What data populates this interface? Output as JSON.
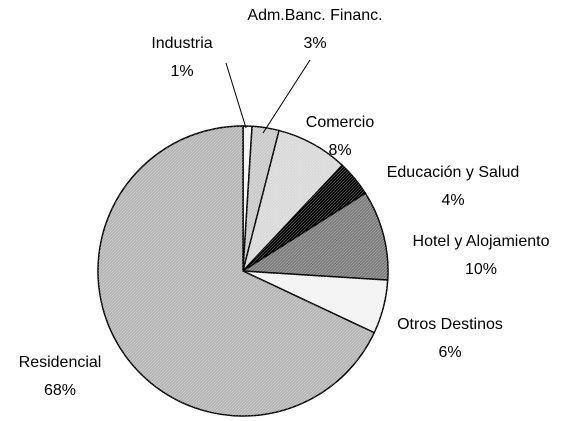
{
  "chart_data": {
    "type": "pie",
    "categories": [
      "Industria",
      "Adm.Banc. Financ.",
      "Comercio",
      "Educación y Salud",
      "Hotel y Alojamiento",
      "Otros Destinos",
      "Residencial"
    ],
    "values": [
      1,
      3,
      8,
      4,
      10,
      6,
      68
    ],
    "value_labels": [
      "1%",
      "3%",
      "8%",
      "4%",
      "10%",
      "6%",
      "68%"
    ],
    "colors": [
      "#f4f4f4",
      "#c8c8c8",
      "#d8d8d8",
      "#000000",
      "#7a7a7a",
      "#f2f2f2",
      "#b4b4b4"
    ]
  }
}
